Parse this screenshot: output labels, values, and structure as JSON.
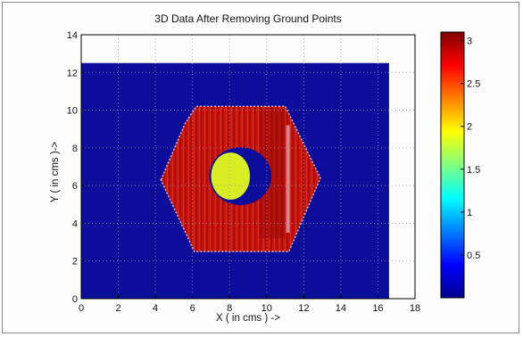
{
  "chart_data": {
    "type": "heatmap",
    "title": "3D Data After Removing Ground Points",
    "xlabel": "X ( in cms ) ->",
    "ylabel": "Y ( in cms )->",
    "xlim": [
      0,
      18
    ],
    "ylim": [
      0,
      14
    ],
    "xticks": [
      0,
      2,
      4,
      6,
      8,
      10,
      12,
      14,
      16,
      18
    ],
    "yticks": [
      0,
      2,
      4,
      6,
      8,
      10,
      12,
      14
    ],
    "grid": true,
    "colorbar": {
      "range": [
        0,
        3.1
      ],
      "ticks": [
        0.5,
        1,
        1.5,
        2,
        2.5,
        3
      ]
    },
    "background": {
      "x": [
        0,
        16.6
      ],
      "y": [
        0,
        12.5
      ],
      "value": 0
    },
    "regions": [
      {
        "name": "hexagon",
        "value": 2.9,
        "polygon": [
          [
            4.3,
            6.3
          ],
          [
            5.6,
            9.3
          ],
          [
            6.2,
            10.2
          ],
          [
            11.0,
            10.2
          ],
          [
            12.9,
            6.4
          ],
          [
            11.2,
            2.5
          ],
          [
            6.1,
            2.5
          ]
        ]
      },
      {
        "name": "hole",
        "value": 1.75,
        "center": [
          8.1,
          6.5
        ],
        "rx": 1.05,
        "ry": 1.25
      }
    ]
  }
}
